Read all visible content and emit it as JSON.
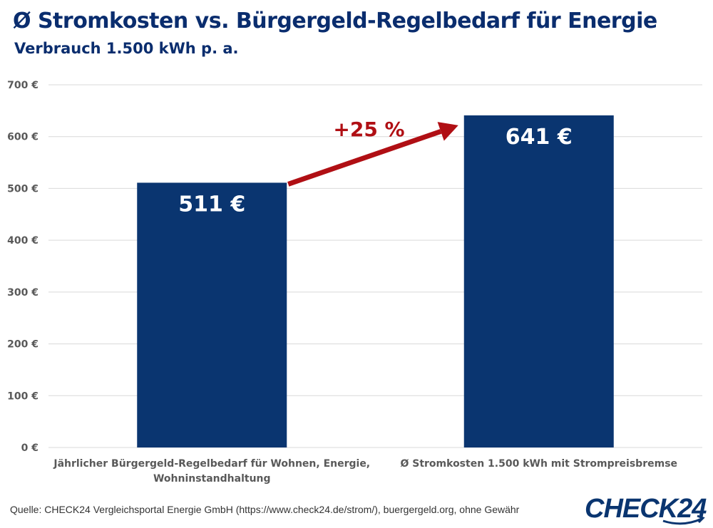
{
  "header": {
    "title": "Ø Stromkosten vs. Bürgergeld-Regelbedarf für Energie",
    "subtitle": "Verbrauch 1.500 kWh p. a."
  },
  "footer": {
    "source": "Quelle: CHECK24 Vergleichsportal Energie GmbH (https://www.check24.de/strom/), buergergeld.org, ohne Gewähr",
    "logo_text": "CHECK24"
  },
  "colors": {
    "bar": "#0a3570",
    "title": "#0a2d6e",
    "arrow": "#b00f14",
    "grid": "#d9d9d9",
    "tick_text": "#595959"
  },
  "chart_data": {
    "type": "bar",
    "title": "Ø Stromkosten vs. Bürgergeld-Regelbedarf für Energie",
    "subtitle": "Verbrauch 1.500 kWh p. a.",
    "xlabel": "",
    "ylabel": "",
    "categories": [
      [
        "Jährlicher Bürgergeld-Regelbedarf für Wohnen, Energie,",
        "Wohninstandhaltung"
      ],
      [
        "Ø Stromkosten 1.500 kWh mit Strompreisbremse"
      ]
    ],
    "values": [
      511,
      641
    ],
    "data_labels": [
      "511 €",
      "641 €"
    ],
    "ylim": [
      0,
      700
    ],
    "yticks": [
      0,
      100,
      200,
      300,
      400,
      500,
      600,
      700
    ],
    "ytick_labels": [
      "0 €",
      "100 €",
      "200 €",
      "300 €",
      "400 €",
      "500 €",
      "600 €",
      "700 €"
    ],
    "grid": true,
    "legend": "none",
    "annotation": {
      "text": "+25 %",
      "from_category": 0,
      "to_category": 1
    }
  }
}
